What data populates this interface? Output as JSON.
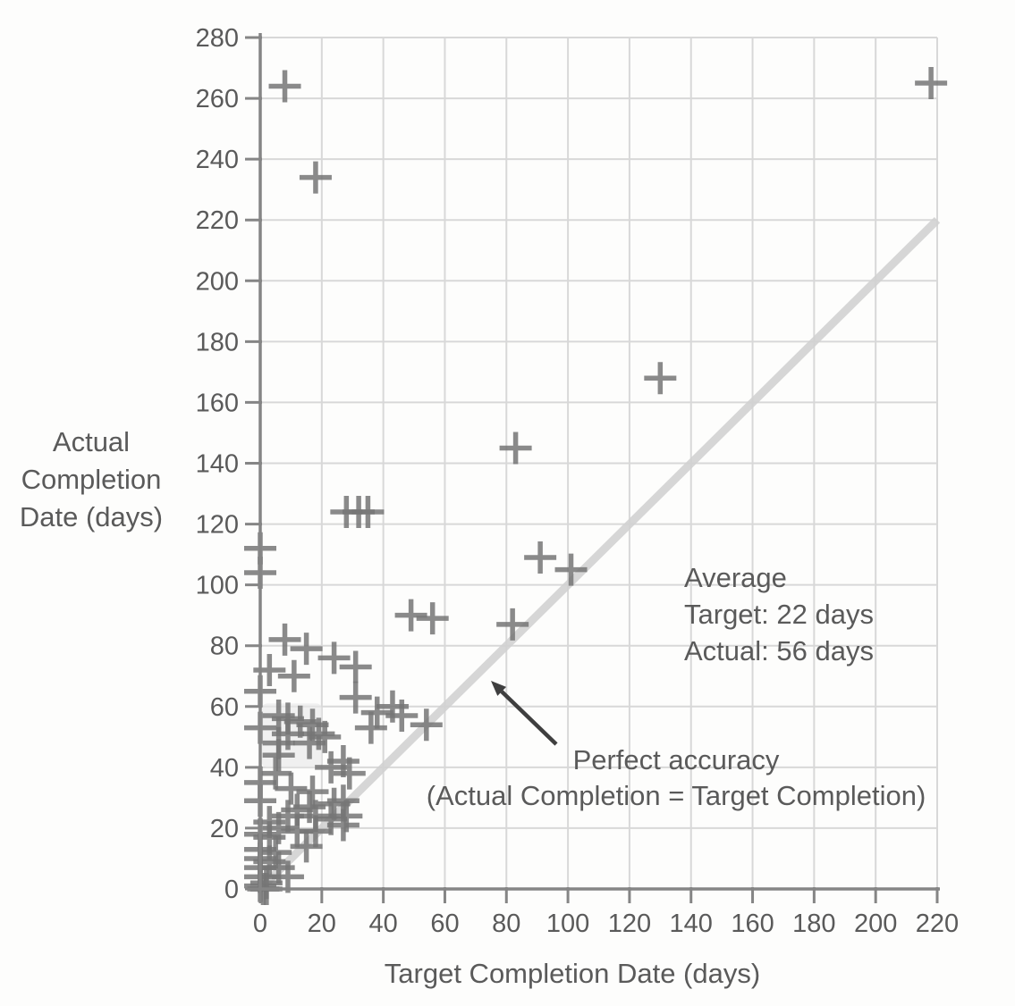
{
  "chart_data": {
    "type": "scatter",
    "title": "",
    "xlabel": "Target Completion Date (days)",
    "ylabel_lines": [
      "Actual",
      "Completion",
      "Date (days)"
    ],
    "xlim": [
      0,
      220
    ],
    "ylim": [
      0,
      280
    ],
    "x_ticks": [
      0,
      20,
      40,
      60,
      80,
      100,
      120,
      140,
      160,
      180,
      200,
      220
    ],
    "y_ticks": [
      0,
      20,
      40,
      60,
      80,
      100,
      120,
      140,
      160,
      180,
      200,
      220,
      240,
      260,
      280
    ],
    "grid": true,
    "legend": "none",
    "marker_style": "plus",
    "points": [
      [
        8,
        264
      ],
      [
        18,
        234
      ],
      [
        218,
        265
      ],
      [
        130,
        168
      ],
      [
        83,
        145
      ],
      [
        28,
        124
      ],
      [
        32,
        124
      ],
      [
        35,
        124
      ],
      [
        0,
        112
      ],
      [
        91,
        109
      ],
      [
        101,
        105
      ],
      [
        0,
        104
      ],
      [
        49,
        90
      ],
      [
        56,
        89
      ],
      [
        82,
        87
      ],
      [
        8,
        82
      ],
      [
        15,
        79
      ],
      [
        24,
        76
      ],
      [
        31,
        73
      ],
      [
        3,
        72
      ],
      [
        11,
        70
      ],
      [
        0,
        65
      ],
      [
        31,
        63
      ],
      [
        43,
        60
      ],
      [
        46,
        57
      ],
      [
        38,
        58
      ],
      [
        36,
        53
      ],
      [
        54,
        54
      ],
      [
        6,
        57
      ],
      [
        9,
        56
      ],
      [
        13,
        55
      ],
      [
        17,
        54
      ],
      [
        0,
        53
      ],
      [
        19,
        51
      ],
      [
        9,
        51
      ],
      [
        21,
        50
      ],
      [
        6,
        48
      ],
      [
        16,
        48
      ],
      [
        6,
        44
      ],
      [
        27,
        42
      ],
      [
        23,
        40
      ],
      [
        5,
        38
      ],
      [
        29,
        38
      ],
      [
        0,
        35
      ],
      [
        10,
        33
      ],
      [
        17,
        32
      ],
      [
        27,
        29
      ],
      [
        0,
        29
      ],
      [
        24,
        28
      ],
      [
        16,
        27
      ],
      [
        12,
        26
      ],
      [
        9,
        24
      ],
      [
        18,
        24
      ],
      [
        28,
        24
      ],
      [
        23,
        23
      ],
      [
        3,
        22
      ],
      [
        27,
        21
      ],
      [
        6,
        20
      ],
      [
        12,
        19
      ],
      [
        18,
        19
      ],
      [
        0,
        18
      ],
      [
        3,
        17
      ],
      [
        15,
        14
      ],
      [
        0,
        13
      ],
      [
        5,
        12
      ],
      [
        0,
        10
      ],
      [
        3,
        9
      ],
      [
        6,
        7
      ],
      [
        0,
        7
      ],
      [
        9,
        4
      ],
      [
        0,
        4
      ],
      [
        2,
        2
      ],
      [
        1,
        0
      ],
      [
        0,
        1
      ],
      [
        2,
        0
      ]
    ],
    "reference_line": {
      "from": [
        0,
        0
      ],
      "to": [
        220,
        220
      ]
    },
    "annotations": {
      "average": {
        "lines": [
          "Average",
          "Target: 22 days",
          "Actual: 56 days"
        ]
      },
      "perfect_accuracy": {
        "lines": [
          "Perfect accuracy",
          "(Actual Completion = Target Completion)"
        ]
      }
    },
    "colors": {
      "marker": "#757575",
      "grid": "#d8d8d8",
      "axis": "#858585",
      "reference_line": "#d2d2d2",
      "text": "#5a5a5a",
      "arrow": "#3f3f3f",
      "highlight": "#e9e9e9",
      "background": "#fdfdfc"
    }
  }
}
